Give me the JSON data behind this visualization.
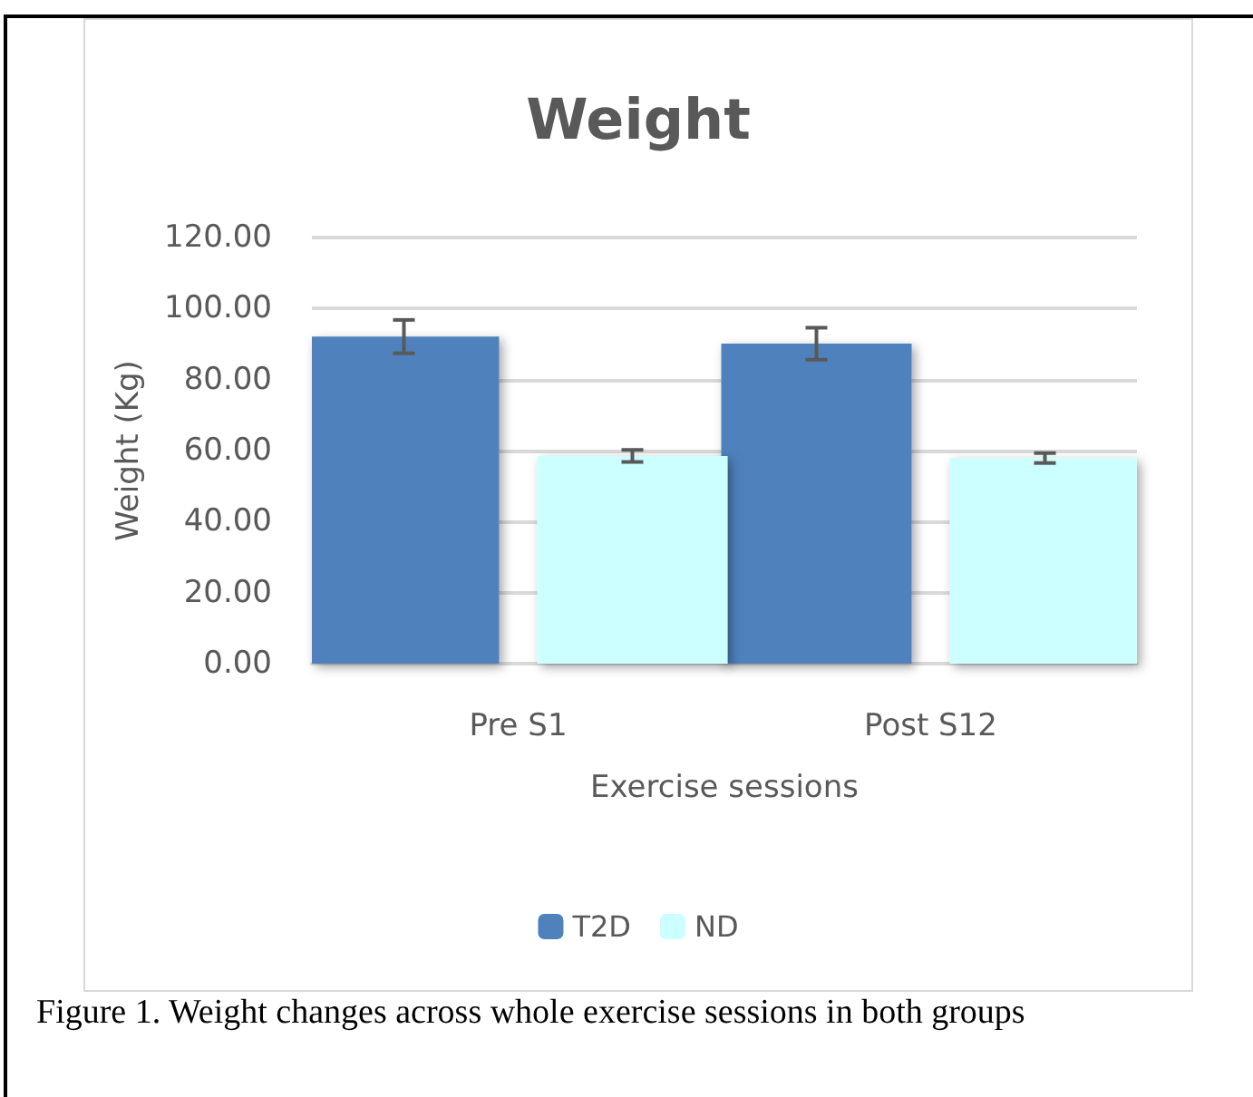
{
  "chart_data": {
    "type": "bar",
    "title": "Weight",
    "xlabel": "Exercise sessions",
    "ylabel": "Weight (Kg)",
    "categories": [
      "Pre S1",
      "Post S12"
    ],
    "series": [
      {
        "name": "T2D",
        "color": "#4f81bd",
        "values": [
          92.1,
          90.1
        ],
        "errors": [
          4.7,
          4.5
        ]
      },
      {
        "name": "ND",
        "color": "#ccffff",
        "values": [
          58.5,
          57.9
        ],
        "errors": [
          1.7,
          1.4
        ]
      }
    ],
    "ylim": [
      0,
      120
    ],
    "yticks": [
      {
        "value": 0,
        "label": "0.00"
      },
      {
        "value": 20,
        "label": "20.00"
      },
      {
        "value": 40,
        "label": "40.00"
      },
      {
        "value": 60,
        "label": "60.00"
      },
      {
        "value": 80,
        "label": "80.00"
      },
      {
        "value": 100,
        "label": "100.00"
      },
      {
        "value": 120,
        "label": "120.00"
      }
    ],
    "grid": "y",
    "legend": "bottom",
    "annotations": [
      "Figure 1. Weight changes across whole exercise sessions in both groups"
    ]
  }
}
